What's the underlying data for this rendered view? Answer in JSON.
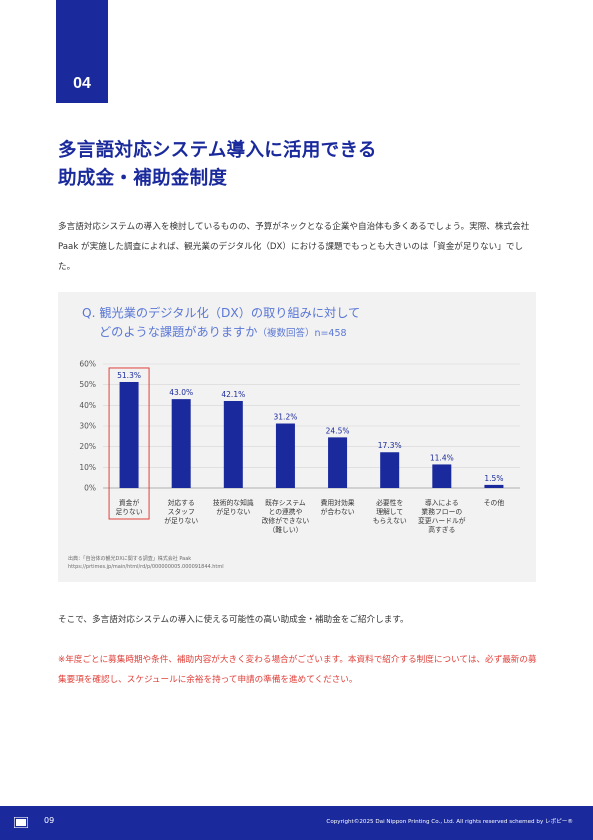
{
  "section_number": "04",
  "title_lines": [
    "多言語対応システム導入に活用できる",
    "助成金・補助金制度"
  ],
  "intro": "多言語対応システムの導入を検討しているものの、予算がネックとなる企業や自治体も多くあるでしょう。実際、株式会社 Paak が実施した調査によれば、観光業のデジタル化（DX）における課題でもっとも大きいのは「資金が足りない」でした。",
  "chart_question_line1": "Q. 観光業のデジタル化（DX）の取り組みに対して",
  "chart_question_line2": "どのような課題がありますか",
  "chart_question_note": "（複数回答）n=458",
  "chart_data": {
    "type": "bar",
    "categories": [
      [
        "資金が",
        "足りない"
      ],
      [
        "対応する",
        "スタッフ",
        "が足りない"
      ],
      [
        "技術的な知識",
        "が足りない"
      ],
      [
        "既存システム",
        "との連携や",
        "改修ができない",
        "（難しい）"
      ],
      [
        "費用対効果",
        "が合わない"
      ],
      [
        "必要性を",
        "理解して",
        "もらえない"
      ],
      [
        "導入による",
        "業務フローの",
        "変更ハードルが",
        "高すぎる"
      ],
      [
        "その他"
      ]
    ],
    "values": [
      51.3,
      43.0,
      42.1,
      31.2,
      24.5,
      17.3,
      11.4,
      1.5
    ],
    "value_labels": [
      "51.3%",
      "43.0%",
      "42.1%",
      "31.2%",
      "24.5%",
      "17.3%",
      "11.4%",
      "1.5%"
    ],
    "y_ticks": [
      "0%",
      "10%",
      "20%",
      "30%",
      "40%",
      "50%",
      "60%"
    ],
    "ylim": [
      0,
      60
    ],
    "highlighted_index": 0,
    "bar_color": "#1a2a9c",
    "highlight_color": "#e0403a"
  },
  "source_lines": [
    "出典：「自治体の観光DXに関する調査」株式会社 Paak",
    "https://prtimes.jp/main/html/rd/p/000000005.000091844.html"
  ],
  "intro2": "そこで、多言語対応システムの導入に使える可能性の高い助成金・補助金をご紹介します。",
  "note": "※年度ごとに募集時期や条件、補助内容が大きく変わる場合がございます。本資料で紹介する制度については、必ず最新の募集要項を確認し、スケジュールに余裕を持って申請の準備を進めてください。",
  "footer": {
    "page_number": "09",
    "copyright": "Copyright©2025 Dai Nippon Printing Co., Ltd. All rights reserved schemed by レポピー®"
  }
}
